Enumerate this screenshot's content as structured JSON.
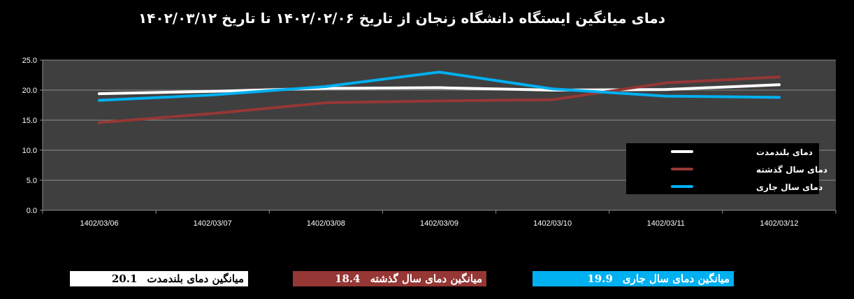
{
  "title": "دمای میانگین ایستگاه دانشگاه زنجان از تاریخ ۱۴۰۲/۰۲/۰۶  تا تاریخ ۱۴۰۲/۰۳/۱۲",
  "chart_data": {
    "type": "line",
    "categories": [
      "1402/03/06",
      "1402/03/07",
      "1402/03/08",
      "1402/03/09",
      "1402/03/10",
      "1402/03/11",
      "1402/03/12"
    ],
    "ylim": [
      0,
      25
    ],
    "yticks": [
      "0.0",
      "5.0",
      "10.0",
      "15.0",
      "20.0",
      "25.0"
    ],
    "grid": true,
    "legend_position": "bottom-right",
    "series": [
      {
        "name": "دمای بلندمدت",
        "color": "#ffffff",
        "values": [
          19.4,
          19.8,
          20.3,
          20.4,
          20.0,
          20.1,
          20.9
        ]
      },
      {
        "name": "دمای سال گذشته",
        "color": "#953735",
        "values": [
          14.6,
          16.1,
          17.9,
          18.2,
          18.4,
          21.2,
          22.2
        ]
      },
      {
        "name": "دمای سال جاری",
        "color": "#00b0f0",
        "values": [
          18.3,
          19.2,
          20.6,
          23.0,
          20.2,
          19.0,
          18.8
        ]
      }
    ]
  },
  "summary": {
    "longterm": {
      "label": "میانگین دمای بلندمدت",
      "value": "20.1"
    },
    "lastyear": {
      "label": "میانگین دمای سال گذشته",
      "value": "18.4"
    },
    "current": {
      "label": "میانگین دمای سال جاری",
      "value": "19.9"
    }
  }
}
